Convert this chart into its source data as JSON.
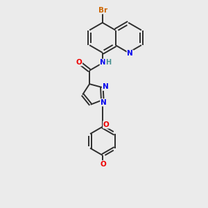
{
  "bg_color": "#ebebeb",
  "bond_color": "#2d2d2d",
  "atom_colors": {
    "Br": "#cc6600",
    "N": "#0000ee",
    "O": "#ee0000",
    "H": "#4a9090",
    "C": "#2d2d2d"
  },
  "figsize": [
    3.0,
    3.0
  ],
  "dpi": 100
}
